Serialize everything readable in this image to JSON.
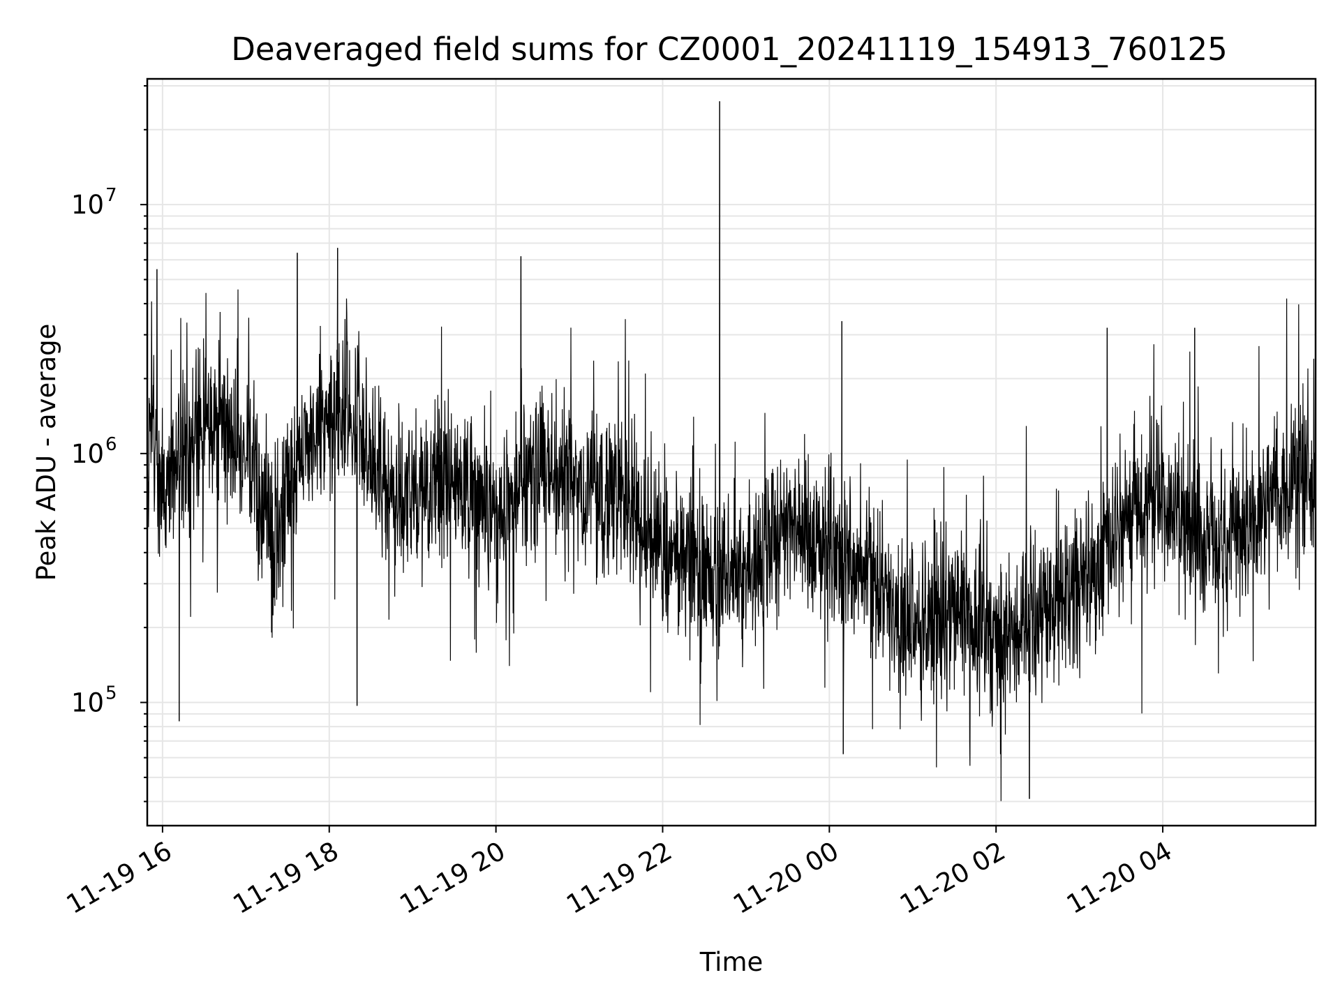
{
  "chart_data": {
    "type": "line",
    "title": "Deaveraged field sums for CZ0001_20241119_154913_760125",
    "xlabel": "Time",
    "ylabel": "Peak ADU - average",
    "yscale": "log",
    "ylim": [
      32000,
      32000000
    ],
    "xlim": [
      "2024-11-19 15:49",
      "2024-11-20 05:50"
    ],
    "grid": true,
    "line_color": "#000000",
    "xticks": [
      "11-19 16",
      "11-19 18",
      "11-19 20",
      "11-19 22",
      "11-20 00",
      "11-20 02",
      "11-20 04"
    ],
    "yticks": [
      {
        "base": "10",
        "exp": "5",
        "value": 100000
      },
      {
        "base": "10",
        "exp": "6",
        "value": 1000000
      },
      {
        "base": "10",
        "exp": "7",
        "value": 10000000
      }
    ],
    "series_trend": [
      {
        "x": "2024-11-19 15:50",
        "y": 1300000
      },
      {
        "x": "2024-11-19 16:00",
        "y": 700000
      },
      {
        "x": "2024-11-19 16:30",
        "y": 1300000
      },
      {
        "x": "2024-11-19 17:00",
        "y": 1000000
      },
      {
        "x": "2024-11-19 17:20",
        "y": 450000
      },
      {
        "x": "2024-11-19 17:45",
        "y": 1300000
      },
      {
        "x": "2024-11-19 18:15",
        "y": 1500000
      },
      {
        "x": "2024-11-19 18:40",
        "y": 700000
      },
      {
        "x": "2024-11-19 19:00",
        "y": 700000
      },
      {
        "x": "2024-11-19 19:30",
        "y": 800000
      },
      {
        "x": "2024-11-19 20:00",
        "y": 600000
      },
      {
        "x": "2024-11-19 20:30",
        "y": 900000
      },
      {
        "x": "2024-11-19 21:00",
        "y": 750000
      },
      {
        "x": "2024-11-19 21:30",
        "y": 650000
      },
      {
        "x": "2024-11-19 22:00",
        "y": 450000
      },
      {
        "x": "2024-11-19 22:40",
        "y": 320000
      },
      {
        "x": "2024-11-19 23:10",
        "y": 350000
      },
      {
        "x": "2024-11-19 23:30",
        "y": 600000
      },
      {
        "x": "2024-11-20 00:00",
        "y": 400000
      },
      {
        "x": "2024-11-20 00:30",
        "y": 300000
      },
      {
        "x": "2024-11-20 01:00",
        "y": 200000
      },
      {
        "x": "2024-11-20 01:30",
        "y": 220000
      },
      {
        "x": "2024-11-20 02:00",
        "y": 180000
      },
      {
        "x": "2024-11-20 02:30",
        "y": 220000
      },
      {
        "x": "2024-11-20 03:00",
        "y": 300000
      },
      {
        "x": "2024-11-20 03:30",
        "y": 500000
      },
      {
        "x": "2024-11-20 04:00",
        "y": 700000
      },
      {
        "x": "2024-11-20 04:30",
        "y": 400000
      },
      {
        "x": "2024-11-20 05:00",
        "y": 500000
      },
      {
        "x": "2024-11-20 05:30",
        "y": 800000
      },
      {
        "x": "2024-11-20 05:50",
        "y": 700000
      }
    ],
    "notable_points": [
      {
        "x": "2024-11-19 15:56",
        "y": 5500000
      },
      {
        "x": "2024-11-19 16:12",
        "y": 84000
      },
      {
        "x": "2024-11-19 17:37",
        "y": 6400000
      },
      {
        "x": "2024-11-19 18:06",
        "y": 6700000
      },
      {
        "x": "2024-11-19 18:20",
        "y": 97000
      },
      {
        "x": "2024-11-19 20:18",
        "y": 6200000
      },
      {
        "x": "2024-11-19 22:41",
        "y": 26000000
      },
      {
        "x": "2024-11-20 00:09",
        "y": 3400000
      },
      {
        "x": "2024-11-20 00:10",
        "y": 62000
      },
      {
        "x": "2024-11-20 02:24",
        "y": 41000
      },
      {
        "x": "2024-11-20 03:20",
        "y": 3200000
      },
      {
        "x": "2024-11-20 04:23",
        "y": 3200000
      }
    ]
  }
}
